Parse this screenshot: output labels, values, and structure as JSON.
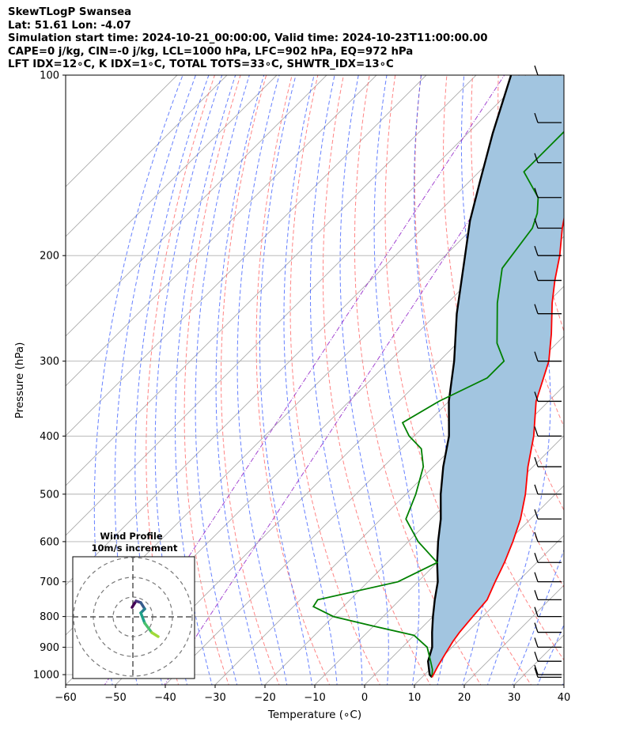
{
  "header": {
    "line1": "SkewTLogP Swansea",
    "line2": "Lat: 51.61   Lon: -4.07",
    "line3": "Simulation start time: 2024-10-21_00:00:00, Valid time: 2024-10-23T11:00:00.00",
    "line4": "CAPE=0 j/kg, CIN=-0 j/kg, LCL=1000 hPa, LFC=902 hPa, EQ=972 hPa",
    "line5": "LFT IDX=12∘C, K IDX=1∘C, TOTAL TOTS=33∘C, SHWTR_IDX=13∘C"
  },
  "colors": {
    "temperature": "#ff0000",
    "dewpoint": "#008000",
    "parcel": "#000000",
    "cape_fill": "#a2c5e0",
    "dry_adiabat": "#ff6666",
    "moist_adiabat": "#3355ff",
    "mixing_ratio_adiabat": "#9933cc",
    "isotherm": "#aaaaaa"
  },
  "chart_data": {
    "type": "skewt",
    "xlabel": "Temperature (∘C)",
    "ylabel": "Pressure (hPa)",
    "xlim": [
      -60,
      40
    ],
    "ylim": [
      1040,
      100
    ],
    "y_scale": "log",
    "x_ticks": [
      -60,
      -50,
      -40,
      -30,
      -20,
      -10,
      0,
      10,
      20,
      30,
      40
    ],
    "y_ticks": [
      100,
      200,
      300,
      400,
      500,
      600,
      700,
      800,
      900,
      1000
    ],
    "grid": true,
    "temperature": [
      [
        1010,
        12.0
      ],
      [
        970,
        11.0
      ],
      [
        925,
        10.0
      ],
      [
        880,
        9.0
      ],
      [
        850,
        8.5
      ],
      [
        800,
        8.0
      ],
      [
        750,
        7.5
      ],
      [
        700,
        5.5
      ],
      [
        650,
        3.5
      ],
      [
        600,
        1.0
      ],
      [
        550,
        -2.0
      ],
      [
        500,
        -6.0
      ],
      [
        450,
        -11.0
      ],
      [
        400,
        -16.0
      ],
      [
        350,
        -22.5
      ],
      [
        300,
        -28.0
      ],
      [
        270,
        -33.0
      ],
      [
        240,
        -39.0
      ],
      [
        220,
        -43.0
      ],
      [
        200,
        -47.0
      ],
      [
        180,
        -52.0
      ],
      [
        160,
        -57.0
      ],
      [
        140,
        -61.0
      ],
      [
        120,
        -66.0
      ],
      [
        100,
        -71.0
      ]
    ],
    "dewpoint": [
      [
        1010,
        12.0
      ],
      [
        980,
        10.5
      ],
      [
        950,
        8.5
      ],
      [
        900,
        5.0
      ],
      [
        860,
        0.0
      ],
      [
        830,
        -10.0
      ],
      [
        800,
        -20.0
      ],
      [
        770,
        -26.0
      ],
      [
        750,
        -26.5
      ],
      [
        700,
        -14.0
      ],
      [
        650,
        -10.0
      ],
      [
        600,
        -18.0
      ],
      [
        550,
        -25.0
      ],
      [
        500,
        -28.0
      ],
      [
        450,
        -32.0
      ],
      [
        420,
        -36.0
      ],
      [
        400,
        -41.0
      ],
      [
        380,
        -45.0
      ],
      [
        350,
        -42.0
      ],
      [
        320,
        -37.0
      ],
      [
        300,
        -37.0
      ],
      [
        280,
        -42.0
      ],
      [
        240,
        -50.0
      ],
      [
        210,
        -56.0
      ],
      [
        180,
        -58.0
      ],
      [
        170,
        -60.0
      ],
      [
        160,
        -63.0
      ],
      [
        145,
        -71.0
      ],
      [
        130,
        -71.0
      ],
      [
        110,
        -71.0
      ],
      [
        100,
        -73.0
      ]
    ],
    "parcel": [
      [
        1010,
        12.0
      ],
      [
        1000,
        11.0
      ],
      [
        950,
        8.0
      ],
      [
        900,
        6.0
      ],
      [
        850,
        3.0
      ],
      [
        800,
        0.0
      ],
      [
        750,
        -3.0
      ],
      [
        700,
        -6.0
      ],
      [
        650,
        -10.0
      ],
      [
        600,
        -14.0
      ],
      [
        550,
        -18.0
      ],
      [
        500,
        -23.0
      ],
      [
        450,
        -28.0
      ],
      [
        400,
        -33.0
      ],
      [
        350,
        -40.0
      ],
      [
        300,
        -47.0
      ],
      [
        250,
        -56.0
      ],
      [
        200,
        -66.0
      ],
      [
        175,
        -72.0
      ],
      [
        150,
        -78.0
      ],
      [
        125,
        -85.0
      ],
      [
        100,
        -93.0
      ]
    ],
    "wind_barbs": [
      [
        1010,
        "W"
      ],
      [
        1000,
        "W"
      ],
      [
        950,
        "W"
      ],
      [
        900,
        "W"
      ],
      [
        850,
        "W"
      ],
      [
        800,
        "W"
      ],
      [
        750,
        "W"
      ],
      [
        700,
        "W"
      ],
      [
        650,
        "W"
      ],
      [
        600,
        "W"
      ],
      [
        550,
        "W"
      ],
      [
        500,
        "W"
      ],
      [
        450,
        "W"
      ],
      [
        400,
        "W"
      ],
      [
        350,
        "W"
      ],
      [
        300,
        "W"
      ],
      [
        250,
        "W"
      ],
      [
        220,
        "W"
      ],
      [
        200,
        "W"
      ],
      [
        180,
        "W"
      ],
      [
        160,
        "W"
      ],
      [
        140,
        "W"
      ],
      [
        120,
        "W"
      ],
      [
        100,
        "W"
      ]
    ]
  },
  "hodograph": {
    "title_line1": "Wind Profile",
    "title_line2": "10m/s increment"
  }
}
